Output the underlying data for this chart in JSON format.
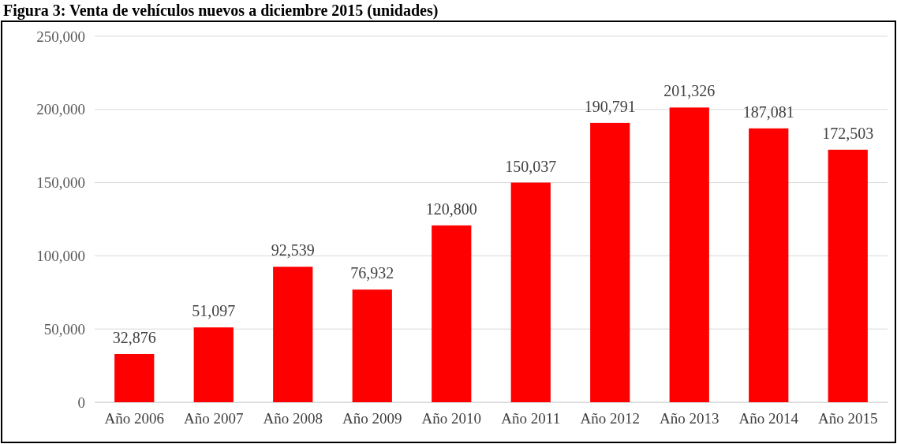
{
  "chart_data": {
    "type": "bar",
    "title": "Figura 3: Venta de vehículos nuevos a diciembre 2015 (unidades)",
    "categories": [
      "Año 2006",
      "Año 2007",
      "Año 2008",
      "Año 2009",
      "Año 2010",
      "Año 2011",
      "Año 2012",
      "Año 2013",
      "Año 2014",
      "Año 2015"
    ],
    "values": [
      32876,
      51097,
      92539,
      76932,
      120800,
      150037,
      190791,
      201326,
      187081,
      172503
    ],
    "color": "#ff0000",
    "ylim": [
      0,
      250000
    ],
    "yticks": [
      {
        "value": 0,
        "label": "0"
      },
      {
        "value": 50000,
        "label": "50,000"
      },
      {
        "value": 100000,
        "label": "100,000"
      },
      {
        "value": 150000,
        "label": "150,000"
      },
      {
        "value": 200000,
        "label": "200,000"
      },
      {
        "value": 250000,
        "label": "250,000"
      }
    ],
    "value_labels": [
      "32,876",
      "51,097",
      "92,539",
      "76,932",
      "120,800",
      "150,037",
      "190,791",
      "201,326",
      "187,081",
      "172,503"
    ],
    "grid": "y"
  }
}
